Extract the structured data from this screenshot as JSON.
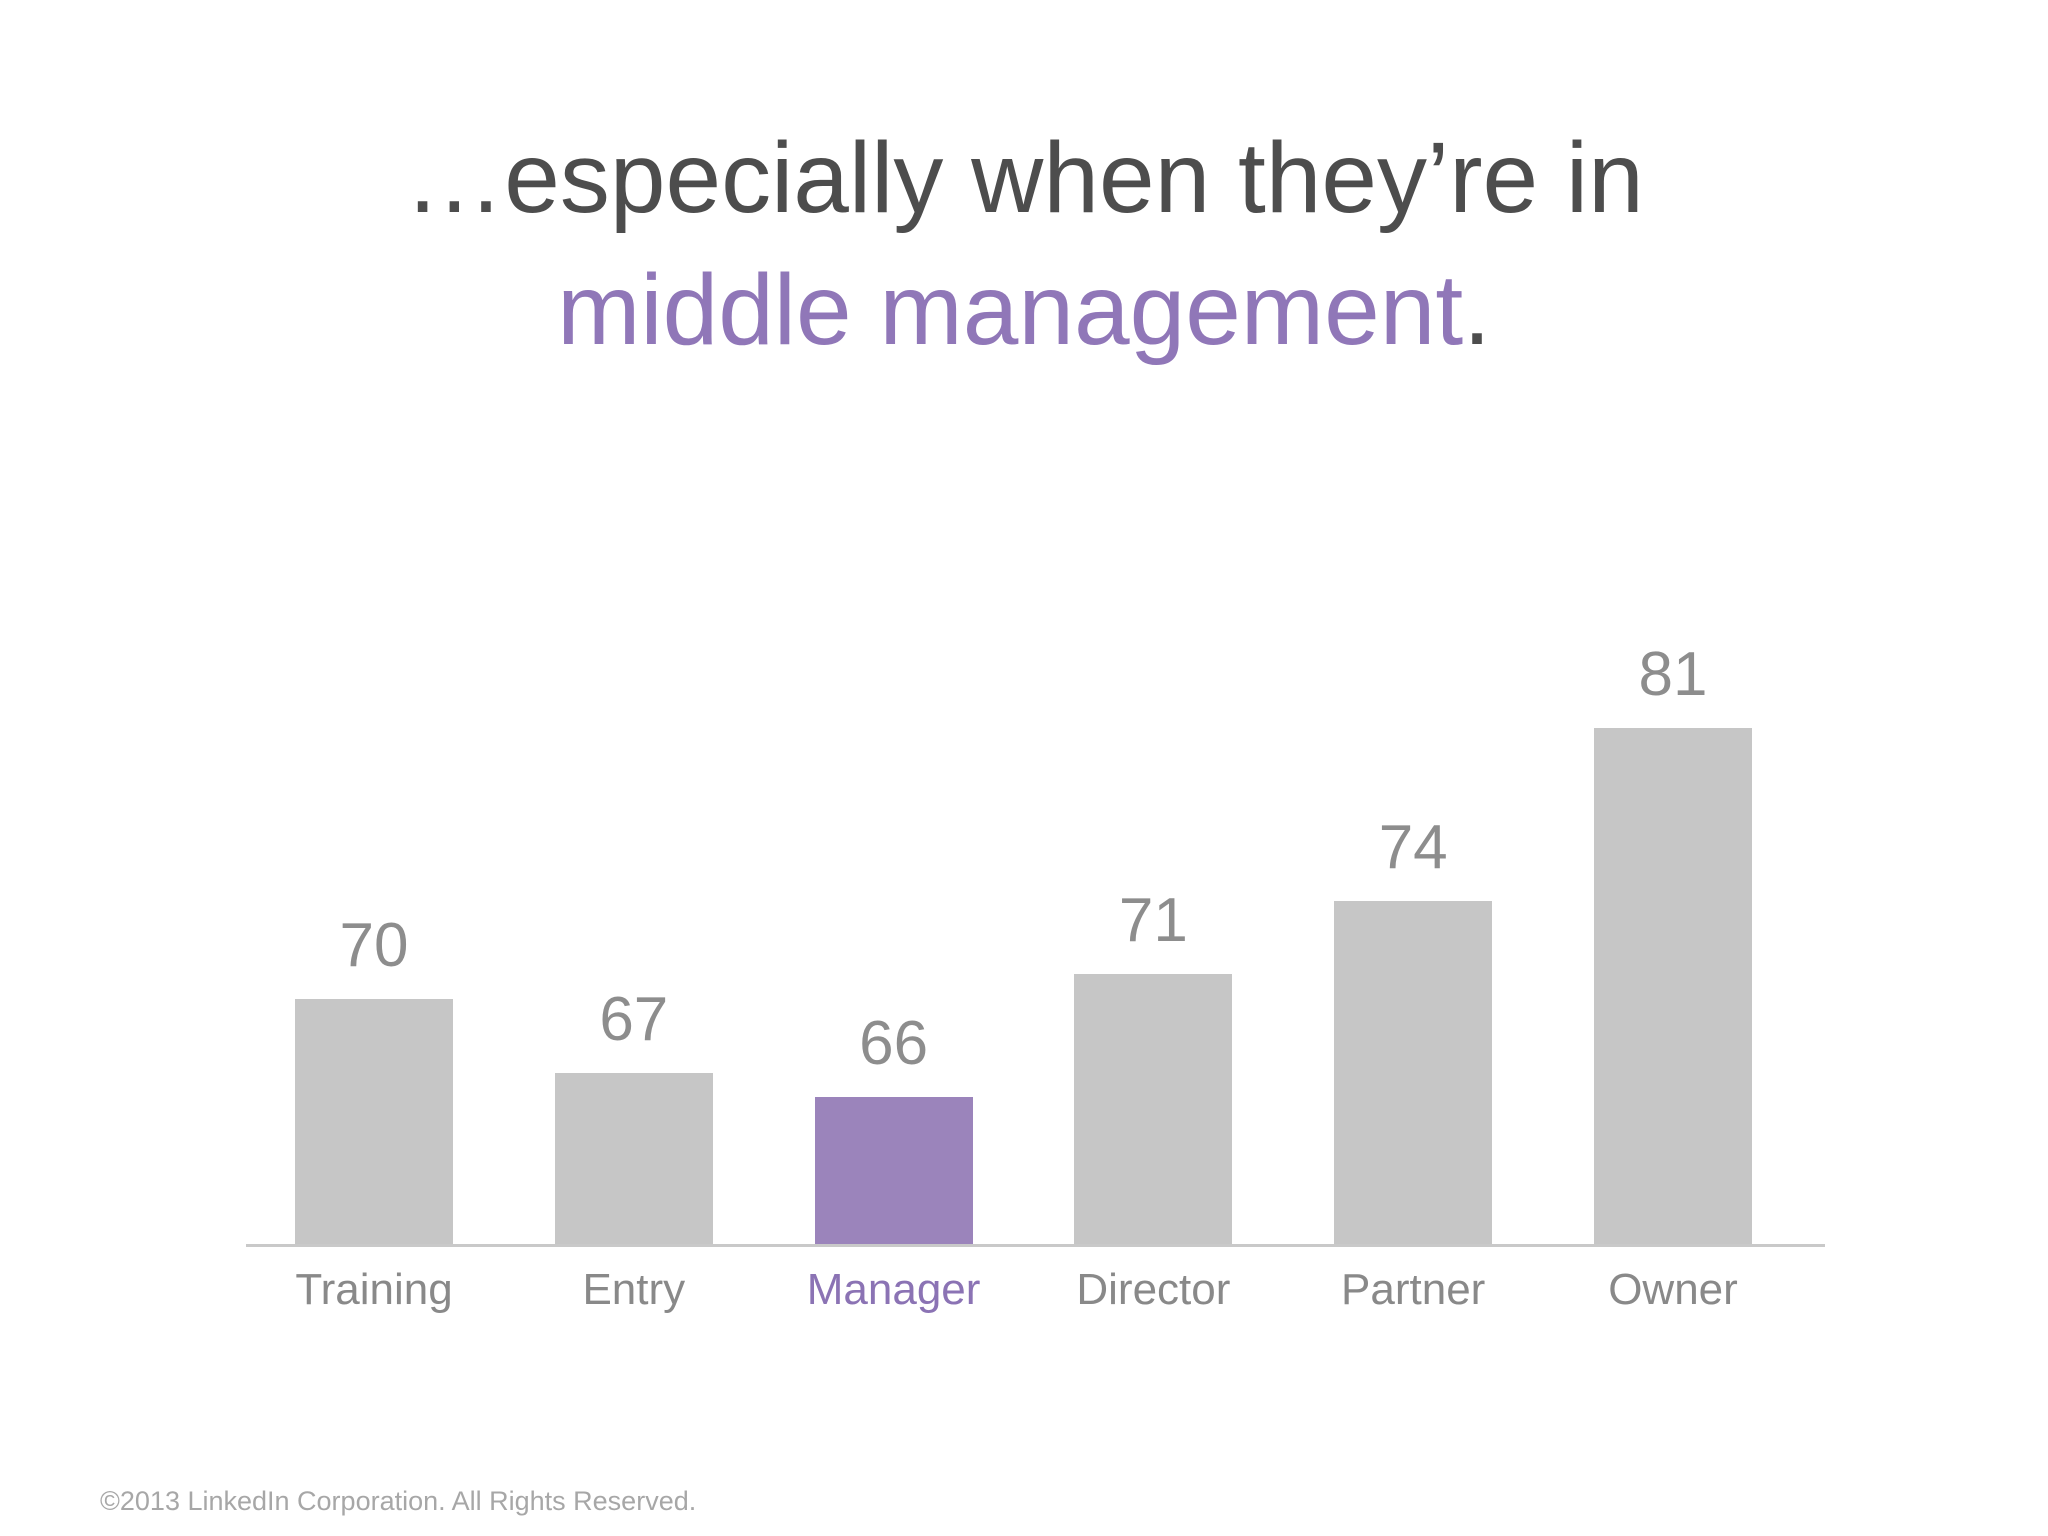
{
  "slide": {
    "title": {
      "line1": "…especially when they’re in",
      "line2_highlight": "middle management",
      "line2_suffix": "."
    },
    "footer": "©2013 LinkedIn Corporation. All Rights Reserved."
  },
  "colors": {
    "title_text": "#4d4d4d",
    "title_accent": "#9077b8",
    "bar_gray": "#c6c6c6",
    "bar_highlight_purple": "#9b84bb",
    "value_label_gray": "#8d8d8d",
    "category_label_gray": "#898989",
    "category_label_highlight": "#8b73b4",
    "axis_line_gray": "#c9c9c9",
    "footer_gray": "#a7a7a7"
  },
  "chart_data": {
    "type": "bar",
    "categories": [
      "Training",
      "Entry",
      "Manager",
      "Director",
      "Partner",
      "Owner"
    ],
    "values": [
      70,
      67,
      66,
      71,
      74,
      81
    ],
    "data_labels": [
      "70",
      "67",
      "66",
      "71",
      "74",
      "81"
    ],
    "highlighted_category": "Manager",
    "highlight_index": 2,
    "title": "",
    "xlabel": "",
    "ylabel": "",
    "ylim": [
      60,
      85
    ],
    "grid": false,
    "legend": false,
    "data_labels_shown": true
  }
}
